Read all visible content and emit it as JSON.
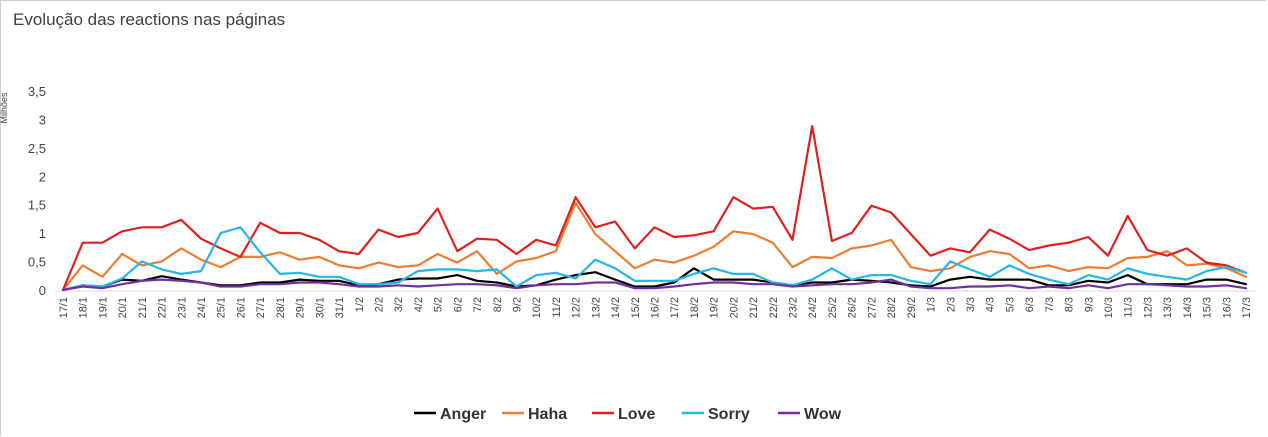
{
  "chart_data": {
    "type": "line",
    "title": "Evolução das reactions nas páginas",
    "ylabel": "Milhões",
    "ylim": [
      0,
      3.5
    ],
    "y_ticks": [
      "0",
      "0,5",
      "1",
      "1,5",
      "2",
      "2,5",
      "3",
      "3,5"
    ],
    "grid": false,
    "legend_position": "bottom",
    "categories": [
      "17/1",
      "18/1",
      "19/1",
      "20/1",
      "21/1",
      "22/1",
      "23/1",
      "24/1",
      "25/1",
      "26/1",
      "27/1",
      "28/1",
      "29/1",
      "30/1",
      "31/1",
      "1/2",
      "2/2",
      "3/2",
      "4/2",
      "5/2",
      "6/2",
      "7/2",
      "8/2",
      "9/2",
      "10/2",
      "11/2",
      "12/2",
      "13/2",
      "14/2",
      "15/2",
      "16/2",
      "17/2",
      "18/2",
      "19/2",
      "20/2",
      "21/2",
      "22/2",
      "23/2",
      "24/2",
      "25/2",
      "26/2",
      "27/2",
      "28/2",
      "29/2",
      "1/3",
      "2/3",
      "3/3",
      "4/3",
      "5/3",
      "6/3",
      "7/3",
      "8/3",
      "9/3",
      "10/3",
      "11/3",
      "12/3",
      "13/3",
      "14/3",
      "15/3",
      "16/3",
      "17/3"
    ],
    "series": [
      {
        "name": "Anger",
        "color": "#000000",
        "values": [
          0.02,
          0.1,
          0.08,
          0.2,
          0.18,
          0.26,
          0.2,
          0.15,
          0.1,
          0.1,
          0.15,
          0.15,
          0.2,
          0.18,
          0.18,
          0.1,
          0.12,
          0.2,
          0.22,
          0.22,
          0.28,
          0.18,
          0.15,
          0.08,
          0.1,
          0.2,
          0.28,
          0.33,
          0.2,
          0.08,
          0.08,
          0.15,
          0.4,
          0.2,
          0.2,
          0.2,
          0.15,
          0.1,
          0.15,
          0.15,
          0.2,
          0.18,
          0.15,
          0.1,
          0.08,
          0.2,
          0.25,
          0.2,
          0.2,
          0.2,
          0.1,
          0.1,
          0.18,
          0.15,
          0.28,
          0.12,
          0.12,
          0.12,
          0.2,
          0.2,
          0.12
        ]
      },
      {
        "name": "Haha",
        "color": "#ED7D31",
        "values": [
          0.02,
          0.45,
          0.25,
          0.65,
          0.45,
          0.52,
          0.75,
          0.55,
          0.42,
          0.6,
          0.6,
          0.68,
          0.55,
          0.6,
          0.45,
          0.4,
          0.5,
          0.42,
          0.45,
          0.65,
          0.5,
          0.7,
          0.3,
          0.52,
          0.58,
          0.7,
          1.55,
          1.0,
          0.7,
          0.4,
          0.55,
          0.5,
          0.62,
          0.78,
          1.05,
          1.0,
          0.85,
          0.42,
          0.6,
          0.58,
          0.75,
          0.8,
          0.9,
          0.42,
          0.35,
          0.4,
          0.6,
          0.7,
          0.65,
          0.4,
          0.45,
          0.35,
          0.42,
          0.4,
          0.58,
          0.6,
          0.7,
          0.45,
          0.48,
          0.4,
          0.25
        ]
      },
      {
        "name": "Love",
        "color": "#E02020",
        "values": [
          0.02,
          0.85,
          0.85,
          1.05,
          1.12,
          1.12,
          1.25,
          0.92,
          0.75,
          0.6,
          1.2,
          1.02,
          1.02,
          0.9,
          0.7,
          0.65,
          1.08,
          0.95,
          1.02,
          1.45,
          0.7,
          0.92,
          0.9,
          0.65,
          0.9,
          0.8,
          1.65,
          1.12,
          1.22,
          0.75,
          1.12,
          0.95,
          0.98,
          1.05,
          1.65,
          1.45,
          1.48,
          0.9,
          2.9,
          0.88,
          1.02,
          1.5,
          1.38,
          1.0,
          0.62,
          0.75,
          0.68,
          1.08,
          0.92,
          0.72,
          0.8,
          0.85,
          0.95,
          0.62,
          1.32,
          0.72,
          0.62,
          0.75,
          0.5,
          0.45,
          0.32
        ]
      },
      {
        "name": "Sorry",
        "color": "#21B8E8",
        "values": [
          0.02,
          0.1,
          0.08,
          0.22,
          0.52,
          0.38,
          0.3,
          0.35,
          1.02,
          1.12,
          0.68,
          0.3,
          0.32,
          0.25,
          0.25,
          0.12,
          0.12,
          0.15,
          0.35,
          0.38,
          0.38,
          0.35,
          0.38,
          0.08,
          0.28,
          0.32,
          0.22,
          0.55,
          0.4,
          0.18,
          0.18,
          0.18,
          0.3,
          0.4,
          0.3,
          0.3,
          0.15,
          0.1,
          0.2,
          0.4,
          0.2,
          0.28,
          0.28,
          0.18,
          0.12,
          0.52,
          0.38,
          0.25,
          0.45,
          0.3,
          0.2,
          0.12,
          0.28,
          0.2,
          0.4,
          0.3,
          0.25,
          0.2,
          0.35,
          0.42,
          0.32
        ]
      },
      {
        "name": "Wow",
        "color": "#7030A0",
        "values": [
          0.02,
          0.08,
          0.05,
          0.12,
          0.18,
          0.2,
          0.18,
          0.15,
          0.08,
          0.08,
          0.12,
          0.12,
          0.15,
          0.15,
          0.12,
          0.08,
          0.08,
          0.1,
          0.08,
          0.1,
          0.12,
          0.12,
          0.1,
          0.05,
          0.1,
          0.12,
          0.12,
          0.15,
          0.15,
          0.05,
          0.05,
          0.08,
          0.12,
          0.15,
          0.15,
          0.12,
          0.12,
          0.08,
          0.1,
          0.12,
          0.12,
          0.15,
          0.2,
          0.08,
          0.05,
          0.05,
          0.08,
          0.08,
          0.1,
          0.05,
          0.08,
          0.05,
          0.1,
          0.05,
          0.12,
          0.12,
          0.1,
          0.08,
          0.08,
          0.1,
          0.05
        ]
      }
    ]
  }
}
